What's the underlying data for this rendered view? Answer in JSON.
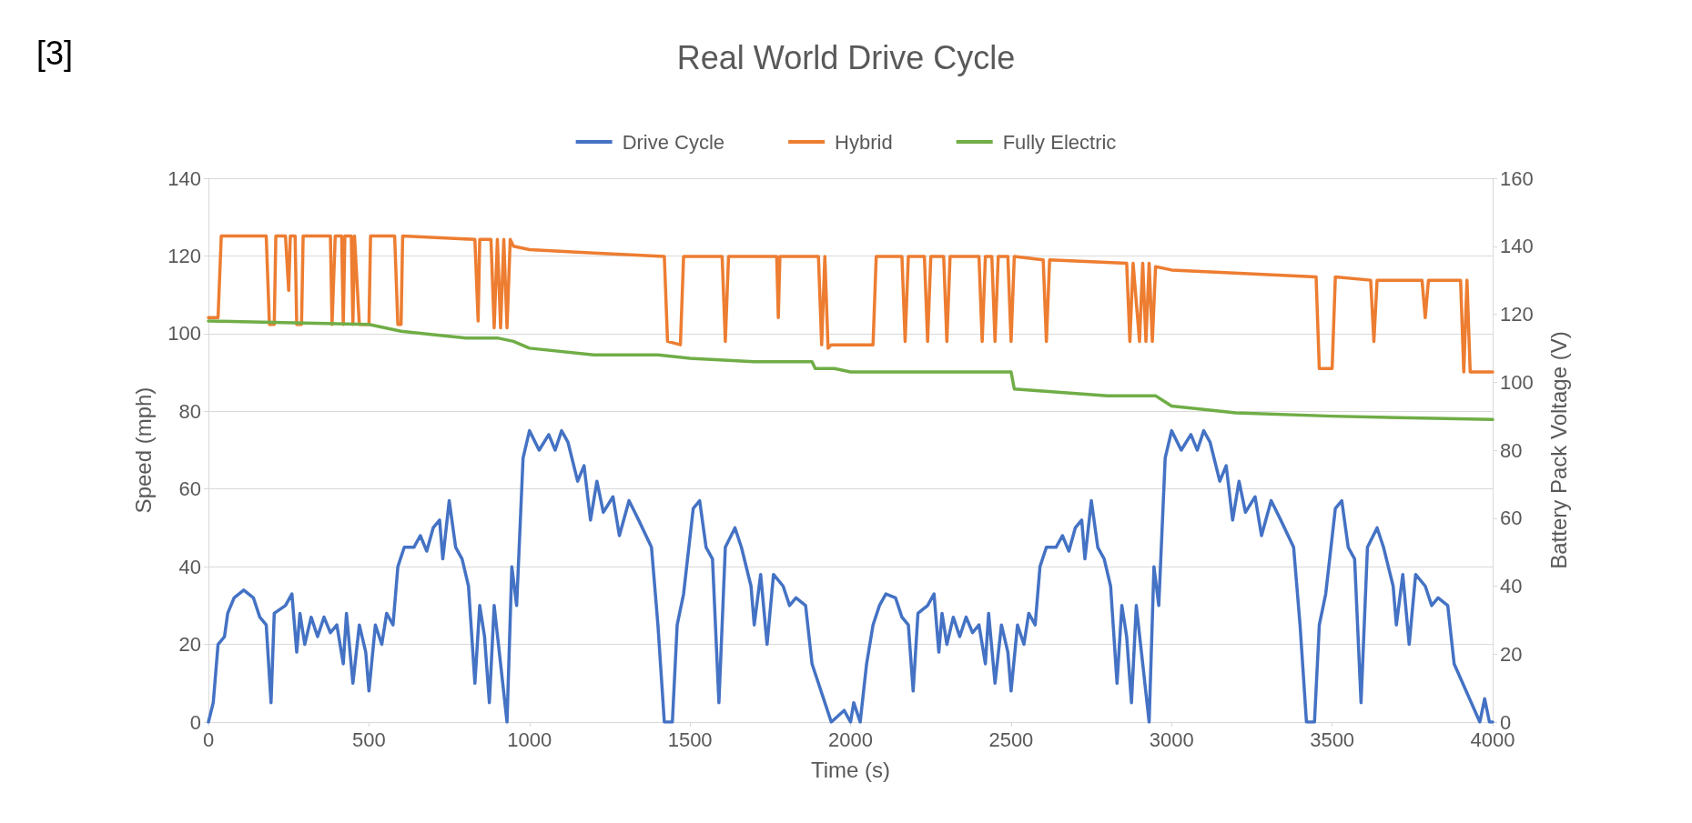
{
  "chart_data": {
    "type": "line",
    "title": "Real World Drive Cycle",
    "xlabel": "Time (s)",
    "ylabel": "Speed (mph)",
    "y2label": "Battery Pack Voltage (V)",
    "annotations": [
      "[3]"
    ],
    "xlim": [
      0,
      4000
    ],
    "xticks": [
      0,
      500,
      1000,
      1500,
      2000,
      2500,
      3000,
      3500,
      4000
    ],
    "ylim": [
      0,
      140
    ],
    "yticks": [
      0,
      20,
      40,
      60,
      80,
      100,
      120,
      140
    ],
    "y2lim": [
      0,
      160
    ],
    "y2ticks": [
      0,
      20,
      40,
      60,
      80,
      100,
      120,
      140,
      160
    ],
    "grid": "y",
    "legend": "top",
    "marker": "none",
    "line_style": "solid",
    "series": [
      {
        "name": "Drive Cycle",
        "color": "#4472c4",
        "x": [
          0,
          15,
          30,
          50,
          60,
          80,
          110,
          140,
          160,
          180,
          195,
          205,
          240,
          260,
          275,
          285,
          300,
          320,
          340,
          360,
          380,
          400,
          420,
          430,
          450,
          470,
          490,
          500,
          520,
          540,
          555,
          575,
          590,
          610,
          640,
          660,
          680,
          700,
          720,
          730,
          750,
          770,
          790,
          810,
          830,
          845,
          860,
          875,
          890,
          910,
          930,
          945,
          960,
          980,
          1000,
          1030,
          1060,
          1080,
          1100,
          1120,
          1150,
          1170,
          1190,
          1210,
          1230,
          1260,
          1280,
          1310,
          1340,
          1380,
          1400,
          1420,
          1445,
          1460,
          1480,
          1510,
          1530,
          1550,
          1570,
          1590,
          1610,
          1640,
          1660,
          1690,
          1700,
          1720,
          1740,
          1760,
          1790,
          1810,
          1830,
          1860,
          1880,
          1900,
          1920,
          1940,
          1980,
          2000,
          2010,
          2030,
          2050,
          2070,
          2090,
          2110,
          2140,
          2160,
          2180,
          2195,
          2210,
          2240,
          2260,
          2275,
          2285,
          2300,
          2320,
          2340,
          2360,
          2380,
          2400,
          2420,
          2430,
          2450,
          2470,
          2490,
          2500,
          2520,
          2540,
          2555,
          2575,
          2590,
          2610,
          2640,
          2660,
          2680,
          2700,
          2720,
          2730,
          2750,
          2770,
          2790,
          2810,
          2830,
          2845,
          2860,
          2875,
          2890,
          2910,
          2930,
          2945,
          2960,
          2980,
          3000,
          3030,
          3060,
          3080,
          3100,
          3120,
          3150,
          3170,
          3190,
          3210,
          3230,
          3260,
          3280,
          3310,
          3340,
          3380,
          3400,
          3420,
          3445,
          3460,
          3480,
          3510,
          3530,
          3550,
          3570,
          3590,
          3610,
          3640,
          3660,
          3690,
          3700,
          3720,
          3740,
          3760,
          3790,
          3810,
          3830,
          3860,
          3880,
          3960,
          3975,
          3990,
          4000
        ],
        "values": [
          0,
          5,
          20,
          22,
          28,
          32,
          34,
          32,
          27,
          25,
          5,
          28,
          30,
          33,
          18,
          28,
          20,
          27,
          22,
          27,
          23,
          25,
          15,
          28,
          10,
          25,
          18,
          8,
          25,
          20,
          28,
          25,
          40,
          45,
          45,
          48,
          44,
          50,
          52,
          42,
          57,
          45,
          42,
          35,
          10,
          30,
          22,
          5,
          30,
          15,
          0,
          40,
          30,
          68,
          75,
          70,
          74,
          70,
          75,
          72,
          62,
          66,
          52,
          62,
          54,
          58,
          48,
          57,
          52,
          45,
          25,
          0,
          0,
          25,
          33,
          55,
          57,
          45,
          42,
          5,
          45,
          50,
          45,
          35,
          25,
          38,
          20,
          38,
          35,
          30,
          32,
          30,
          15,
          10,
          5,
          0,
          3,
          0,
          5,
          0,
          15,
          25,
          30,
          33,
          32,
          27,
          25,
          8,
          28,
          30,
          33,
          18,
          28,
          20,
          27,
          22,
          27,
          23,
          25,
          15,
          28,
          10,
          25,
          18,
          8,
          25,
          20,
          28,
          25,
          40,
          45,
          45,
          48,
          44,
          50,
          52,
          42,
          57,
          45,
          42,
          35,
          10,
          30,
          22,
          5,
          30,
          15,
          0,
          40,
          30,
          68,
          75,
          70,
          74,
          70,
          75,
          72,
          62,
          66,
          52,
          62,
          54,
          58,
          48,
          57,
          52,
          45,
          25,
          0,
          0,
          25,
          33,
          55,
          57,
          45,
          42,
          5,
          45,
          50,
          45,
          35,
          25,
          38,
          20,
          38,
          35,
          30,
          32,
          30,
          15,
          0,
          6,
          0,
          0
        ]
      },
      {
        "name": "Hybrid",
        "color": "#ed7d31",
        "axis": "y2",
        "x": [
          0,
          30,
          40,
          180,
          190,
          205,
          210,
          240,
          250,
          255,
          270,
          275,
          290,
          295,
          380,
          385,
          395,
          415,
          420,
          425,
          445,
          450,
          455,
          470,
          500,
          505,
          580,
          590,
          600,
          605,
          830,
          840,
          845,
          880,
          890,
          900,
          910,
          920,
          930,
          940,
          950,
          1000,
          1200,
          1420,
          1430,
          1470,
          1480,
          1600,
          1610,
          1620,
          1770,
          1775,
          1780,
          1900,
          1910,
          1920,
          1930,
          1940,
          2070,
          2080,
          2160,
          2170,
          2180,
          2230,
          2240,
          2250,
          2290,
          2300,
          2310,
          2400,
          2410,
          2420,
          2440,
          2450,
          2460,
          2490,
          2500,
          2510,
          2600,
          2610,
          2620,
          2860,
          2870,
          2880,
          2900,
          2910,
          2920,
          2930,
          2940,
          2950,
          3000,
          3450,
          3460,
          3500,
          3510,
          3620,
          3630,
          3640,
          3780,
          3790,
          3800,
          3900,
          3910,
          3920,
          3930,
          3950,
          4000
        ],
        "values": [
          119,
          119,
          143,
          143,
          117,
          117,
          143,
          143,
          127,
          143,
          143,
          117,
          117,
          143,
          143,
          117,
          143,
          143,
          117,
          143,
          143,
          117,
          143,
          117,
          117,
          143,
          143,
          117,
          117,
          143,
          142,
          118,
          142,
          142,
          116,
          142,
          116,
          142,
          116,
          142,
          140,
          139,
          138,
          137,
          112,
          111,
          137,
          137,
          112,
          137,
          137,
          119,
          137,
          137,
          111,
          137,
          110,
          111,
          111,
          137,
          137,
          112,
          137,
          137,
          112,
          137,
          137,
          112,
          137,
          137,
          112,
          137,
          137,
          112,
          137,
          137,
          112,
          137,
          136,
          112,
          136,
          135,
          112,
          135,
          112,
          135,
          112,
          135,
          112,
          134,
          133,
          131,
          104,
          104,
          131,
          130,
          112,
          130,
          130,
          119,
          130,
          130,
          103,
          130,
          103,
          103,
          103
        ]
      },
      {
        "name": "Fully Electric",
        "color": "#70ad47",
        "axis": "y2",
        "x": [
          0,
          500,
          600,
          700,
          800,
          900,
          950,
          1000,
          1200,
          1400,
          1500,
          1700,
          1880,
          1890,
          1950,
          2000,
          2500,
          2510,
          2800,
          2950,
          3000,
          3200,
          3500,
          4000
        ],
        "values": [
          118,
          117,
          115,
          114,
          113,
          113,
          112,
          110,
          108,
          108,
          107,
          106,
          106,
          104,
          104,
          103,
          103,
          98,
          96,
          96,
          93,
          91,
          90,
          89
        ]
      }
    ]
  }
}
